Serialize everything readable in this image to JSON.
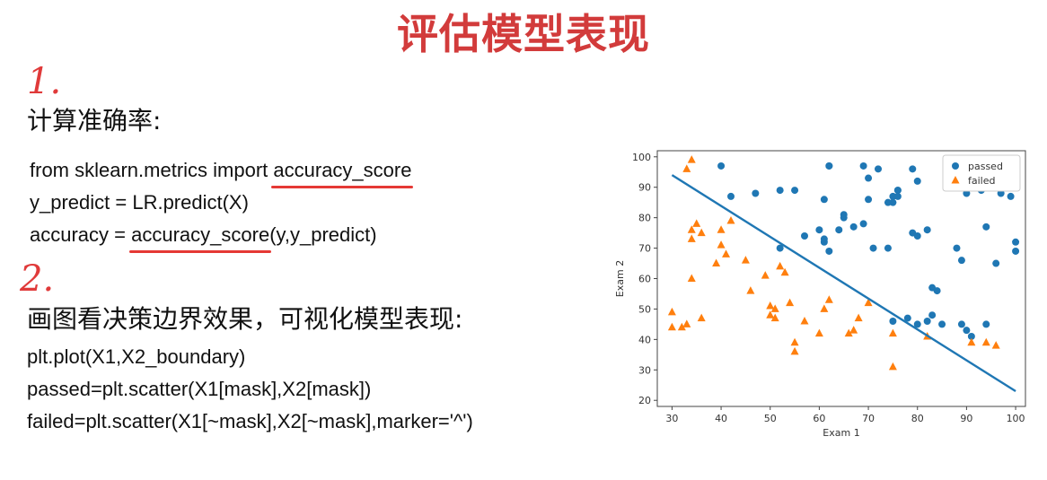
{
  "title": "评估模型表现",
  "step1": "1.",
  "step2": "2.",
  "heading1": "计算准确率:",
  "heading2": "画图看决策边界效果，可视化模型表现:",
  "code1": {
    "line1_prefix": "from sklearn.metrics import ",
    "line1_func": "accuracy_score",
    "line2": "y_predict = LR.predict(X)",
    "line3_prefix": "accuracy = ",
    "line3_func": "accuracy_score",
    "line3_suffix": "(y,y_predict)"
  },
  "code2": {
    "line1": "plt.plot(X1,X2_boundary)",
    "line2": "passed=plt.scatter(X1[mask],X2[mask])",
    "line3": "failed=plt.scatter(X1[~mask],X2[~mask],marker='^')"
  },
  "chart_data": {
    "type": "scatter",
    "xlabel": "Exam 1",
    "ylabel": "Exam 2",
    "xlim": [
      27,
      102
    ],
    "ylim": [
      18,
      102
    ],
    "xticks": [
      30,
      40,
      50,
      60,
      70,
      80,
      90,
      100
    ],
    "yticks": [
      20,
      30,
      40,
      50,
      60,
      70,
      80,
      90,
      100
    ],
    "legend_position": "top-right",
    "colors": {
      "passed": "#1f77b4",
      "failed": "#ff7f0e"
    },
    "boundary": {
      "x": [
        30,
        100
      ],
      "y": [
        94,
        23
      ]
    },
    "series": [
      {
        "name": "passed",
        "marker": "circle",
        "x": [
          40,
          42,
          47,
          52,
          55,
          61,
          62,
          62,
          69,
          70,
          72,
          74,
          75,
          76,
          76,
          79,
          80,
          82,
          60,
          61,
          64,
          65,
          69,
          71,
          74,
          75,
          76,
          79,
          80,
          82,
          83,
          84,
          88,
          89,
          90,
          93,
          94,
          96,
          97,
          99,
          100,
          100,
          61,
          62,
          65,
          67,
          70,
          75,
          78,
          80,
          83,
          85,
          89,
          90,
          91,
          94,
          57,
          52
        ],
        "y": [
          97,
          87,
          88,
          89,
          89,
          86,
          97,
          97,
          97,
          93,
          96,
          85,
          87,
          89,
          89,
          96,
          92,
          76,
          76,
          73,
          76,
          81,
          78,
          70,
          70,
          85,
          87,
          75,
          74,
          46,
          57,
          56,
          70,
          66,
          88,
          89,
          77,
          65,
          88,
          87,
          69,
          72,
          72,
          69,
          80,
          77,
          86,
          46,
          47,
          45,
          48,
          45,
          45,
          43,
          41,
          45,
          74,
          70
        ]
      },
      {
        "name": "failed",
        "marker": "triangle",
        "x": [
          33,
          34,
          34,
          35,
          34,
          36,
          30,
          30,
          32,
          33,
          34,
          36,
          39,
          40,
          40,
          41,
          42,
          45,
          46,
          49,
          50,
          50,
          51,
          51,
          52,
          53,
          54,
          55,
          55,
          57,
          60,
          61,
          62,
          66,
          67,
          68,
          70,
          75,
          75,
          82,
          91,
          94,
          96
        ],
        "y": [
          96,
          99,
          76,
          78,
          73,
          75,
          49,
          44,
          44,
          45,
          60,
          47,
          65,
          76,
          71,
          68,
          79,
          66,
          56,
          61,
          51,
          48,
          47,
          50,
          64,
          62,
          52,
          39,
          36,
          46,
          42,
          50,
          53,
          42,
          43,
          47,
          52,
          42,
          31,
          41,
          39,
          39,
          38
        ]
      }
    ]
  }
}
